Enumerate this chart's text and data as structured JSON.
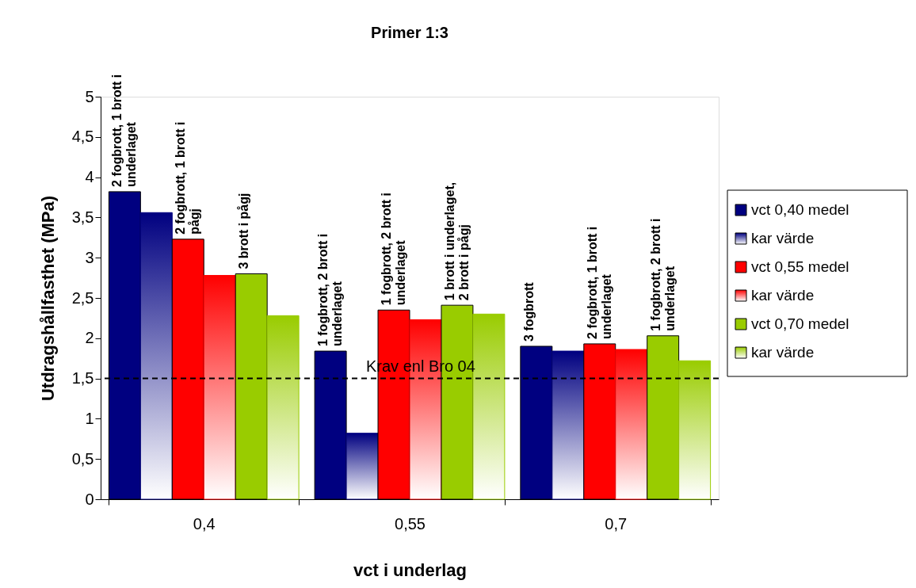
{
  "chart_data": {
    "type": "bar",
    "title": "Primer 1:3",
    "xlabel": "vct i underlag",
    "ylabel": "Utdragshållfasthet (MPa)",
    "categories": [
      "0,4",
      "0,55",
      "0,7"
    ],
    "series": [
      {
        "name": "vct 0,40 medel",
        "color": "#000080",
        "values": [
          3.82,
          1.84,
          1.9
        ]
      },
      {
        "name": "kar värde",
        "color": "#000080",
        "values": [
          3.56,
          0.82,
          1.84
        ]
      },
      {
        "name": "vct 0,55 medel",
        "color": "#ff0000",
        "values": [
          3.23,
          2.35,
          1.93
        ]
      },
      {
        "name": "kar värde",
        "color": "#ff0000",
        "values": [
          2.78,
          2.23,
          1.86
        ]
      },
      {
        "name": "vct 0,70 medel",
        "color": "#99cc00",
        "values": [
          2.8,
          2.41,
          2.03
        ]
      },
      {
        "name": "kar värde",
        "color": "#99cc00",
        "values": [
          2.28,
          2.3,
          1.72
        ]
      }
    ],
    "ylim": [
      0,
      5
    ],
    "yticks": [
      0,
      {
        "value": 0.5,
        "label": "0,5"
      },
      1,
      {
        "value": 1.5,
        "label": "1,5"
      },
      2,
      {
        "value": 2.5,
        "label": "2,5"
      },
      3,
      {
        "value": 3.5,
        "label": "3,5"
      },
      4,
      {
        "value": 4.5,
        "label": "4,5"
      },
      5
    ],
    "ref_lines": [
      {
        "axis": "y",
        "value": 1.5,
        "label": "Krav enl Bro 04",
        "color": "#000000",
        "line_style": "dashed"
      }
    ],
    "annotations": [
      "2 fogbrott, 1 brott i underlaget",
      "2 fogbrott, 1 brott i pågj",
      "3 brott i pågj",
      "1 fogbrott, 2 brott i underlaget",
      "1 fogbrott, 2 brott i underlaget",
      "1 brott i underlaget, 2 brott i pågj",
      "3 fogbrott",
      "2 fogbrott, 1 brott i underlaget",
      "1 fogbrott, 2 brott i underlaget"
    ],
    "grid": false,
    "legend": "right"
  }
}
